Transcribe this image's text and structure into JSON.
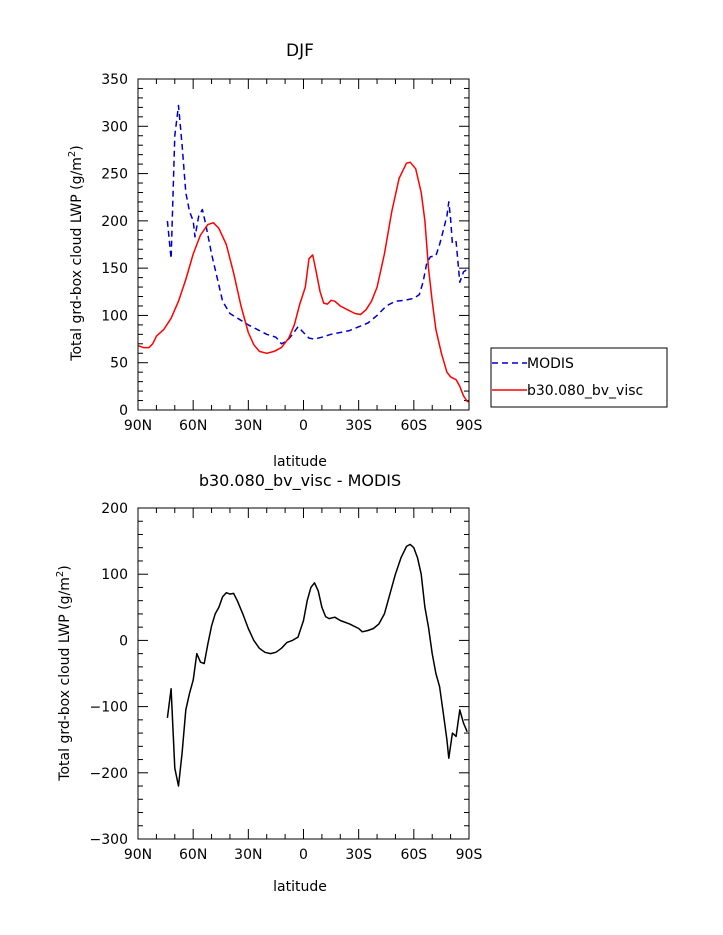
{
  "chart_data": [
    {
      "type": "line",
      "title": "DJF",
      "xlabel": "latitude",
      "ylabel_main": "Total grd-box cloud LWP (g/m",
      "ylabel_sup": "2",
      "ylabel_end": ")",
      "xlim": [
        -90,
        90
      ],
      "ylim": [
        0,
        350
      ],
      "xticks": [
        -90,
        -60,
        -30,
        0,
        30,
        60,
        90
      ],
      "xtick_labels": [
        "90N",
        "60N",
        "30N",
        "0",
        "30S",
        "60S",
        "90S"
      ],
      "yticks": [
        0,
        50,
        100,
        150,
        200,
        250,
        300,
        350
      ],
      "ytick_labels": [
        "0",
        "50",
        "100",
        "150",
        "200",
        "250",
        "300",
        "350"
      ],
      "legend_position": "right",
      "series": [
        {
          "name": "MODIS",
          "color": "#0000cc",
          "style": "dashed",
          "points": [
            [
              -74,
              200
            ],
            [
              -72,
              160
            ],
            [
              -70,
              290
            ],
            [
              -68,
              322
            ],
            [
              -66,
              280
            ],
            [
              -64,
              230
            ],
            [
              -62,
              210
            ],
            [
              -60,
              200
            ],
            [
              -59,
              183
            ],
            [
              -57,
              205
            ],
            [
              -55,
              212
            ],
            [
              -53,
              195
            ],
            [
              -50,
              165
            ],
            [
              -47,
              140
            ],
            [
              -44,
              115
            ],
            [
              -40,
              102
            ],
            [
              -35,
              96
            ],
            [
              -30,
              90
            ],
            [
              -25,
              85
            ],
            [
              -20,
              80
            ],
            [
              -15,
              77
            ],
            [
              -12,
              70
            ],
            [
              -9,
              73
            ],
            [
              -6,
              80
            ],
            [
              -3,
              88
            ],
            [
              0,
              82
            ],
            [
              3,
              76
            ],
            [
              6,
              75
            ],
            [
              10,
              77
            ],
            [
              15,
              80
            ],
            [
              20,
              82
            ],
            [
              25,
              84
            ],
            [
              30,
              88
            ],
            [
              35,
              92
            ],
            [
              40,
              100
            ],
            [
              45,
              110
            ],
            [
              50,
              115
            ],
            [
              55,
              116
            ],
            [
              60,
              118
            ],
            [
              63,
              122
            ],
            [
              65,
              135
            ],
            [
              67,
              155
            ],
            [
              69,
              162
            ],
            [
              72,
              163
            ],
            [
              74,
              175
            ],
            [
              76,
              190
            ],
            [
              78,
              205
            ],
            [
              79,
              220
            ],
            [
              80,
              202
            ],
            [
              81,
              176
            ],
            [
              83,
              178
            ],
            [
              85,
              135
            ],
            [
              87,
              146
            ],
            [
              90,
              150
            ]
          ]
        },
        {
          "name": "b30.080_bv_visc",
          "color": "#ff0000",
          "style": "solid",
          "points": [
            [
              -90,
              68
            ],
            [
              -87,
              66
            ],
            [
              -84,
              66
            ],
            [
              -82,
              70
            ],
            [
              -80,
              78
            ],
            [
              -76,
              85
            ],
            [
              -72,
              97
            ],
            [
              -68,
              115
            ],
            [
              -64,
              138
            ],
            [
              -60,
              165
            ],
            [
              -56,
              185
            ],
            [
              -52,
              196
            ],
            [
              -49,
              198
            ],
            [
              -46,
              192
            ],
            [
              -42,
              175
            ],
            [
              -38,
              145
            ],
            [
              -34,
              110
            ],
            [
              -30,
              82
            ],
            [
              -27,
              69
            ],
            [
              -24,
              62
            ],
            [
              -20,
              60
            ],
            [
              -16,
              62
            ],
            [
              -12,
              66
            ],
            [
              -8,
              76
            ],
            [
              -5,
              90
            ],
            [
              -2,
              112
            ],
            [
              1,
              130
            ],
            [
              3,
              160
            ],
            [
              5,
              164
            ],
            [
              7,
              145
            ],
            [
              9,
              125
            ],
            [
              11,
              113
            ],
            [
              13,
              112
            ],
            [
              15,
              116
            ],
            [
              17,
              115
            ],
            [
              20,
              110
            ],
            [
              24,
              106
            ],
            [
              28,
              102
            ],
            [
              31,
              101
            ],
            [
              34,
              106
            ],
            [
              37,
              115
            ],
            [
              40,
              130
            ],
            [
              44,
              165
            ],
            [
              48,
              210
            ],
            [
              52,
              245
            ],
            [
              56,
              261
            ],
            [
              58,
              262
            ],
            [
              61,
              255
            ],
            [
              64,
              230
            ],
            [
              66,
              200
            ],
            [
              68,
              150
            ],
            [
              70,
              115
            ],
            [
              72,
              85
            ],
            [
              75,
              60
            ],
            [
              78,
              40
            ],
            [
              80,
              35
            ],
            [
              83,
              32
            ],
            [
              85,
              25
            ],
            [
              87,
              15
            ],
            [
              89,
              9
            ],
            [
              90,
              9
            ]
          ]
        }
      ]
    },
    {
      "type": "line",
      "title": "b30.080_bv_visc - MODIS",
      "xlabel": "latitude",
      "ylabel_main": "Total grd-box cloud LWP (g/m",
      "ylabel_sup": "2",
      "ylabel_end": ")",
      "xlim": [
        -90,
        90
      ],
      "ylim": [
        -300,
        200
      ],
      "xticks": [
        -90,
        -60,
        -30,
        0,
        30,
        60,
        90
      ],
      "xtick_labels": [
        "90N",
        "60N",
        "30N",
        "0",
        "30S",
        "60S",
        "90S"
      ],
      "yticks": [
        -300,
        -200,
        -100,
        0,
        100,
        200
      ],
      "ytick_labels": [
        "−300",
        "−200",
        "−100",
        "0",
        "100",
        "200"
      ],
      "series": [
        {
          "color": "#000000",
          "style": "solid",
          "points": [
            [
              -74,
              -117
            ],
            [
              -72,
              -73
            ],
            [
              -70,
              -193
            ],
            [
              -68,
              -220
            ],
            [
              -66,
              -170
            ],
            [
              -64,
              -105
            ],
            [
              -62,
              -80
            ],
            [
              -60,
              -60
            ],
            [
              -58,
              -20
            ],
            [
              -56,
              -33
            ],
            [
              -54,
              -35
            ],
            [
              -52,
              -5
            ],
            [
              -50,
              22
            ],
            [
              -48,
              40
            ],
            [
              -46,
              50
            ],
            [
              -44,
              66
            ],
            [
              -42,
              72
            ],
            [
              -40,
              70
            ],
            [
              -38,
              71
            ],
            [
              -36,
              60
            ],
            [
              -33,
              40
            ],
            [
              -30,
              18
            ],
            [
              -27,
              0
            ],
            [
              -24,
              -12
            ],
            [
              -21,
              -18
            ],
            [
              -18,
              -20
            ],
            [
              -15,
              -18
            ],
            [
              -12,
              -12
            ],
            [
              -9,
              -3
            ],
            [
              -6,
              0
            ],
            [
              -3,
              5
            ],
            [
              0,
              30
            ],
            [
              2,
              60
            ],
            [
              4,
              80
            ],
            [
              6,
              87
            ],
            [
              8,
              75
            ],
            [
              10,
              50
            ],
            [
              12,
              36
            ],
            [
              14,
              33
            ],
            [
              17,
              35
            ],
            [
              20,
              30
            ],
            [
              25,
              25
            ],
            [
              30,
              18
            ],
            [
              32,
              13
            ],
            [
              35,
              15
            ],
            [
              38,
              18
            ],
            [
              41,
              25
            ],
            [
              44,
              40
            ],
            [
              47,
              70
            ],
            [
              50,
              100
            ],
            [
              53,
              125
            ],
            [
              56,
              142
            ],
            [
              58,
              145
            ],
            [
              60,
              140
            ],
            [
              62,
              125
            ],
            [
              64,
              100
            ],
            [
              66,
              50
            ],
            [
              68,
              20
            ],
            [
              70,
              -20
            ],
            [
              72,
              -50
            ],
            [
              74,
              -70
            ],
            [
              76,
              -110
            ],
            [
              78,
              -150
            ],
            [
              79,
              -178
            ],
            [
              81,
              -140
            ],
            [
              83,
              -145
            ],
            [
              85,
              -105
            ],
            [
              87,
              -125
            ],
            [
              89,
              -138
            ]
          ]
        }
      ]
    }
  ]
}
